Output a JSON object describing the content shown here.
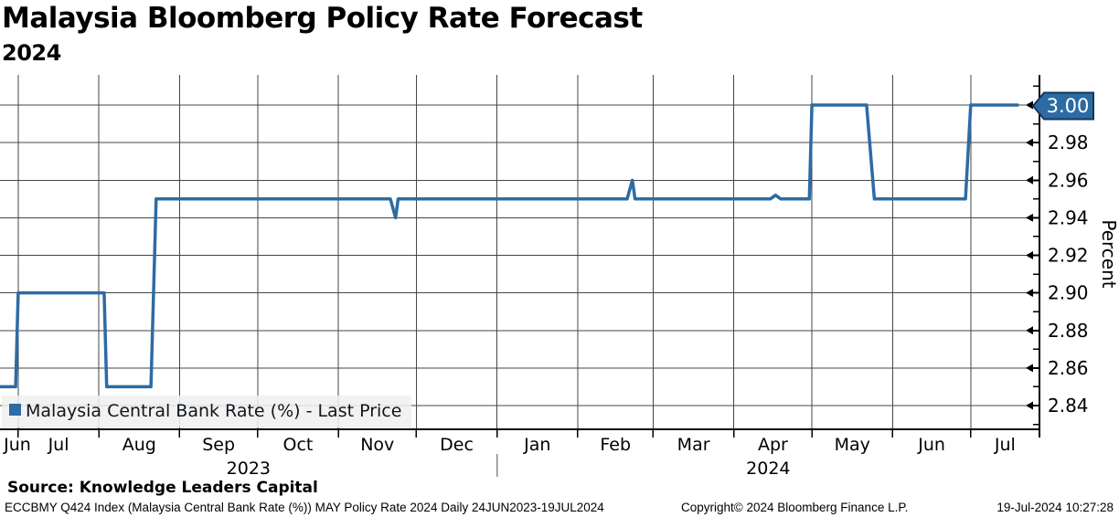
{
  "title": "Malaysia Bloomberg Policy Rate Forecast",
  "subtitle": "2024",
  "legend": {
    "label": "Malaysia Central Bank Rate (%) - Last Price",
    "swatch_color": "#2d6ba5"
  },
  "footer": {
    "source": "Source: Knowledge Leaders Capital",
    "security_info": "ECCBMY Q424 Index (Malaysia Central Bank Rate (%)) MAY Policy Rate 2024  Daily 24JUN2023-19JUL2024",
    "copyright": "Copyright© 2024 Bloomberg Finance L.P.",
    "timestamp": "19-Jul-2024 10:27:28"
  },
  "colors": {
    "accent": "#2d6ba5",
    "callout_fill": "#2d6ba5",
    "callout_border": "#16365c",
    "grid": "#454545",
    "axis": "#000000",
    "text": "#000000",
    "legend_bg": "rgba(240,240,240,0.88)",
    "year_separator": "#8a8a8a",
    "callout_text": "#ffffff"
  },
  "chart_data": {
    "type": "line",
    "title": "Malaysia Bloomberg Policy Rate Forecast 2024",
    "grid": true,
    "legend_position": "bottom-left",
    "x_axis": {
      "start_date": "2023-06-24",
      "end_date": "2024-07-19",
      "month_labels": [
        "Jun",
        "Jul",
        "Aug",
        "Sep",
        "Oct",
        "Nov",
        "Dec",
        "Jan",
        "Feb",
        "Mar",
        "Apr",
        "May",
        "Jun",
        "Jul"
      ],
      "year_labels": [
        "2023",
        "2024"
      ],
      "year_split_date": "2024-01-01"
    },
    "y_axis": {
      "title": "Percent",
      "tick_labels": [
        "3.00",
        "2.98",
        "2.96",
        "2.94",
        "2.92",
        "2.90",
        "2.88",
        "2.86",
        "2.84"
      ],
      "major_tick_step": 0.02,
      "minor_tick_step": 0.01,
      "range": [
        2.827,
        3.016
      ]
    },
    "last_price": 3.0,
    "last_price_label": "3.00",
    "series": [
      {
        "name": "Malaysia Central Bank Rate (%) - Last Price",
        "color": "#2d6ba5",
        "points": [
          [
            "2023-06-24",
            2.85
          ],
          [
            "2023-06-30",
            2.85
          ],
          [
            "2023-07-01",
            2.9
          ],
          [
            "2023-08-03",
            2.9
          ],
          [
            "2023-08-04",
            2.85
          ],
          [
            "2023-08-21",
            2.85
          ],
          [
            "2023-08-23",
            2.95
          ],
          [
            "2023-11-21",
            2.95
          ],
          [
            "2023-11-23",
            2.94
          ],
          [
            "2023-11-24",
            2.95
          ],
          [
            "2024-02-20",
            2.95
          ],
          [
            "2024-02-22",
            2.96
          ],
          [
            "2024-02-23",
            2.95
          ],
          [
            "2024-04-15",
            2.95
          ],
          [
            "2024-04-17",
            2.952
          ],
          [
            "2024-04-19",
            2.95
          ],
          [
            "2024-04-30",
            2.95
          ],
          [
            "2024-05-01",
            3.0
          ],
          [
            "2024-05-22",
            3.0
          ],
          [
            "2024-05-25",
            2.95
          ],
          [
            "2024-06-29",
            2.95
          ],
          [
            "2024-07-01",
            3.0
          ],
          [
            "2024-07-19",
            3.0
          ]
        ]
      }
    ]
  }
}
